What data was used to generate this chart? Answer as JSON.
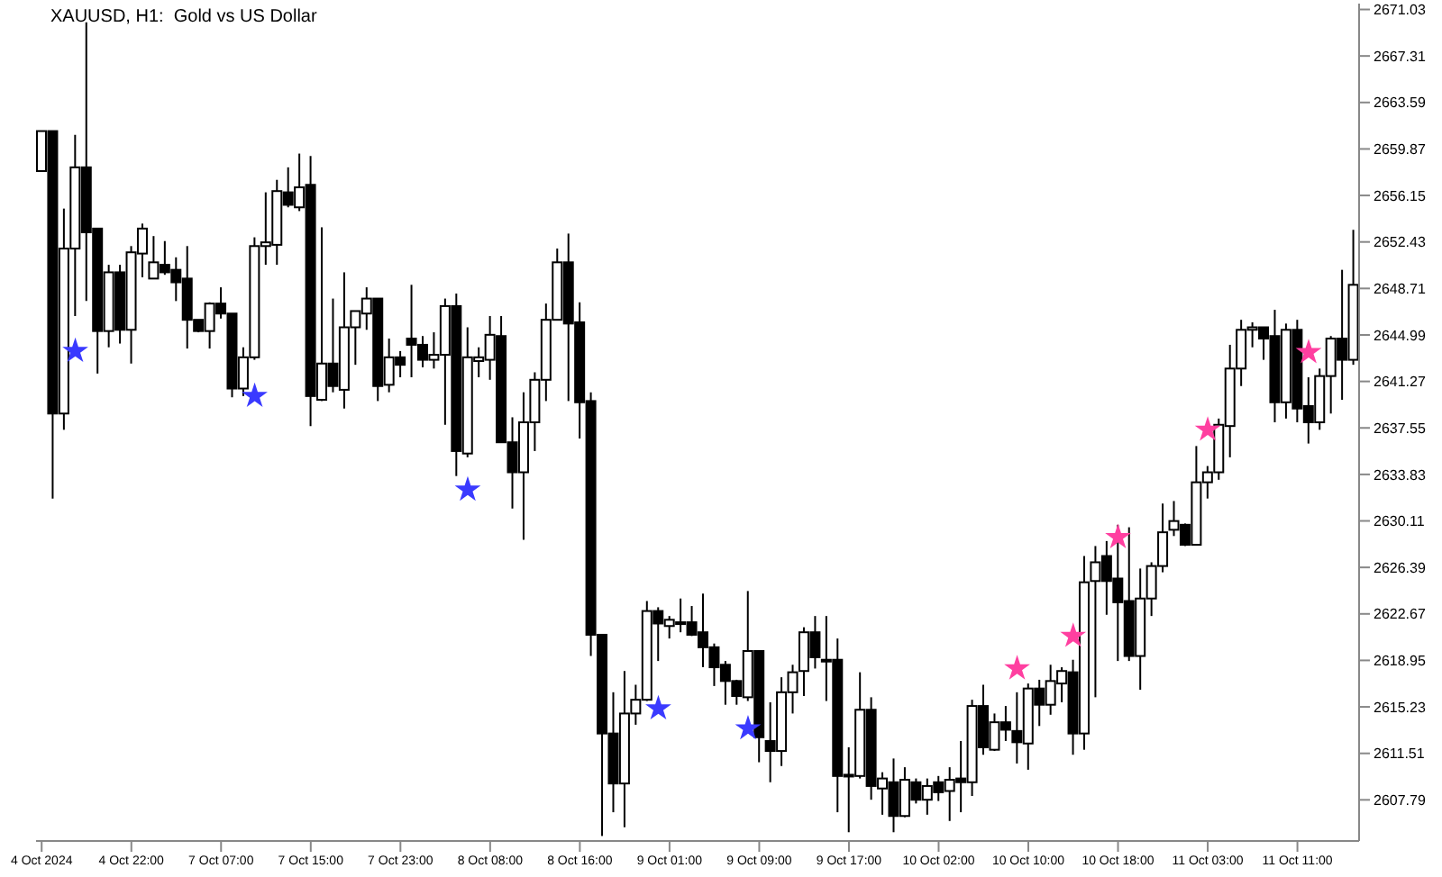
{
  "chart_data": {
    "type": "candlestick",
    "title": "XAUUSD, H1:  Gold vs US Dollar",
    "categories": [
      "4 Oct 2024",
      null,
      null,
      null,
      null,
      null,
      null,
      null,
      "4 Oct 22:00",
      null,
      null,
      null,
      null,
      null,
      null,
      null,
      "7 Oct 07:00",
      null,
      null,
      null,
      null,
      null,
      null,
      null,
      "7 Oct 15:00",
      null,
      null,
      null,
      null,
      null,
      null,
      null,
      "7 Oct 23:00",
      null,
      null,
      null,
      null,
      null,
      null,
      null,
      "8 Oct 08:00",
      null,
      null,
      null,
      null,
      null,
      null,
      null,
      "8 Oct 16:00",
      null,
      null,
      null,
      null,
      null,
      null,
      null,
      "9 Oct 01:00",
      null,
      null,
      null,
      null,
      null,
      null,
      null,
      "9 Oct 09:00",
      null,
      null,
      null,
      null,
      null,
      null,
      null,
      "9 Oct 17:00",
      null,
      null,
      null,
      null,
      null,
      null,
      null,
      "10 Oct 02:00",
      null,
      null,
      null,
      null,
      null,
      null,
      null,
      "10 Oct 10:00",
      null,
      null,
      null,
      null,
      null,
      null,
      null,
      "10 Oct 18:00",
      null,
      null,
      null,
      null,
      null,
      null,
      null,
      "11 Oct 03:00",
      null,
      null,
      null,
      null,
      null,
      null,
      null,
      "11 Oct 11:00",
      null,
      null,
      null,
      null,
      null
    ],
    "ohlc": [
      [
        2658.1,
        2661.3,
        2658.1,
        2661.3
      ],
      [
        2661.3,
        2661.3,
        2631.9,
        2638.7
      ],
      [
        2638.7,
        2655.1,
        2637.4,
        2651.9
      ],
      [
        2651.9,
        2661.0,
        2646.5,
        2658.4
      ],
      [
        2658.4,
        2670.0,
        2647.7,
        2653.2
      ],
      [
        2653.5,
        2653.5,
        2641.9,
        2645.3
      ],
      [
        2645.3,
        2650.6,
        2644.0,
        2650.0
      ],
      [
        2650.0,
        2650.6,
        2644.3,
        2645.4
      ],
      [
        2645.4,
        2652.1,
        2642.7,
        2651.6
      ],
      [
        2651.5,
        2653.9,
        2649.6,
        2653.5
      ],
      [
        2649.5,
        2652.9,
        2649.5,
        2650.8
      ],
      [
        2650.6,
        2652.5,
        2649.8,
        2650.0
      ],
      [
        2650.2,
        2651.2,
        2647.7,
        2649.2
      ],
      [
        2649.5,
        2652.1,
        2643.9,
        2646.2
      ],
      [
        2646.2,
        2646.2,
        2645.2,
        2645.3
      ],
      [
        2645.3,
        2647.6,
        2643.9,
        2647.5
      ],
      [
        2647.5,
        2648.8,
        2646.3,
        2646.7
      ],
      [
        2646.7,
        2646.7,
        2640.0,
        2640.7
      ],
      [
        2640.7,
        2644.0,
        2640.1,
        2643.2
      ],
      [
        2643.2,
        2652.8,
        2643.0,
        2652.1
      ],
      [
        2652.1,
        2656.4,
        2650.6,
        2652.4
      ],
      [
        2652.2,
        2657.4,
        2650.6,
        2656.5
      ],
      [
        2656.4,
        2658.4,
        2655.2,
        2655.4
      ],
      [
        2655.2,
        2659.5,
        2654.9,
        2656.8
      ],
      [
        2657.0,
        2659.3,
        2637.7,
        2640.1
      ],
      [
        2639.8,
        2653.6,
        2639.7,
        2642.7
      ],
      [
        2642.7,
        2647.9,
        2640.4,
        2640.9
      ],
      [
        2640.6,
        2650.0,
        2639.1,
        2645.6
      ],
      [
        2645.6,
        2646.9,
        2642.6,
        2646.9
      ],
      [
        2646.7,
        2648.8,
        2645.4,
        2647.9
      ],
      [
        2647.9,
        2647.9,
        2639.7,
        2640.9
      ],
      [
        2641.0,
        2644.7,
        2640.4,
        2643.2
      ],
      [
        2643.2,
        2643.7,
        2641.6,
        2642.6
      ],
      [
        2644.7,
        2649.0,
        2641.6,
        2644.2
      ],
      [
        2644.2,
        2644.9,
        2642.4,
        2643.0
      ],
      [
        2643.0,
        2645.2,
        2642.3,
        2643.4
      ],
      [
        2643.4,
        2647.9,
        2637.8,
        2647.3
      ],
      [
        2647.3,
        2648.3,
        2633.7,
        2635.7
      ],
      [
        2635.5,
        2645.6,
        2635.2,
        2643.2
      ],
      [
        2642.9,
        2644.0,
        2641.6,
        2643.2
      ],
      [
        2643.0,
        2646.5,
        2641.4,
        2645.0
      ],
      [
        2644.9,
        2646.5,
        2636.4,
        2636.4
      ],
      [
        2636.4,
        2638.4,
        2631.1,
        2634.0
      ],
      [
        2634.0,
        2640.4,
        2628.6,
        2638.0
      ],
      [
        2638.0,
        2642.0,
        2635.7,
        2641.4
      ],
      [
        2641.4,
        2647.5,
        2639.7,
        2646.2
      ],
      [
        2646.2,
        2651.9,
        2646.2,
        2650.8
      ],
      [
        2650.8,
        2653.1,
        2639.7,
        2645.9
      ],
      [
        2646.0,
        2647.6,
        2636.7,
        2639.6
      ],
      [
        2639.7,
        2640.4,
        2619.3,
        2621.0
      ],
      [
        2621.0,
        2621.0,
        2604.9,
        2613.1
      ],
      [
        2613.1,
        2616.4,
        2606.8,
        2609.1
      ],
      [
        2609.1,
        2618.1,
        2605.6,
        2614.7
      ],
      [
        2614.7,
        2617.0,
        2613.8,
        2615.8
      ],
      [
        2615.8,
        2623.7,
        2615.7,
        2622.9
      ],
      [
        2622.9,
        2623.2,
        2618.9,
        2621.9
      ],
      [
        2621.7,
        2622.5,
        2620.7,
        2622.2
      ],
      [
        2622.0,
        2623.9,
        2621.2,
        2622.0
      ],
      [
        2622.0,
        2623.3,
        2620.9,
        2621.0
      ],
      [
        2621.2,
        2624.3,
        2618.4,
        2620.0
      ],
      [
        2620.0,
        2620.3,
        2616.9,
        2618.4
      ],
      [
        2618.6,
        2618.9,
        2615.4,
        2617.3
      ],
      [
        2617.3,
        2617.4,
        2615.4,
        2616.1
      ],
      [
        2616.0,
        2624.5,
        2615.7,
        2619.7
      ],
      [
        2619.7,
        2619.7,
        2610.8,
        2612.8
      ],
      [
        2612.5,
        2615.6,
        2609.2,
        2611.7
      ],
      [
        2611.7,
        2617.6,
        2610.5,
        2616.4
      ],
      [
        2616.4,
        2618.6,
        2614.7,
        2618.0
      ],
      [
        2618.1,
        2621.6,
        2616.1,
        2621.2
      ],
      [
        2621.2,
        2622.5,
        2618.3,
        2619.2
      ],
      [
        2619.0,
        2622.5,
        2615.7,
        2619.0
      ],
      [
        2619.0,
        2620.7,
        2606.8,
        2609.7
      ],
      [
        2609.8,
        2612.0,
        2605.2,
        2609.8
      ],
      [
        2609.7,
        2618.0,
        2609.5,
        2615.0
      ],
      [
        2615.0,
        2616.0,
        2607.8,
        2608.9
      ],
      [
        2608.7,
        2610.0,
        2606.6,
        2609.5
      ],
      [
        2609.2,
        2611.1,
        2605.2,
        2606.5
      ],
      [
        2606.5,
        2610.4,
        2606.4,
        2609.4
      ],
      [
        2609.2,
        2609.5,
        2607.5,
        2607.8
      ],
      [
        2607.8,
        2609.5,
        2606.6,
        2608.9
      ],
      [
        2609.2,
        2609.7,
        2607.7,
        2608.4
      ],
      [
        2608.5,
        2610.4,
        2606.1,
        2609.4
      ],
      [
        2609.5,
        2612.5,
        2606.8,
        2609.2
      ],
      [
        2609.2,
        2615.8,
        2608.1,
        2615.3
      ],
      [
        2615.3,
        2617.0,
        2611.4,
        2612.0
      ],
      [
        2611.8,
        2614.7,
        2611.7,
        2614.0
      ],
      [
        2614.0,
        2615.3,
        2612.5,
        2613.4
      ],
      [
        2613.3,
        2616.4,
        2610.7,
        2612.4
      ],
      [
        2612.3,
        2617.1,
        2610.2,
        2616.7
      ],
      [
        2616.7,
        2617.4,
        2613.7,
        2615.4
      ],
      [
        2615.4,
        2618.6,
        2614.6,
        2617.3
      ],
      [
        2617.1,
        2618.4,
        2615.6,
        2618.1
      ],
      [
        2618.0,
        2619.0,
        2611.4,
        2613.1
      ],
      [
        2613.1,
        2627.3,
        2611.8,
        2625.2
      ],
      [
        2625.3,
        2628.1,
        2616.0,
        2626.8
      ],
      [
        2627.3,
        2628.5,
        2622.6,
        2625.3
      ],
      [
        2625.5,
        2629.8,
        2618.9,
        2623.6
      ],
      [
        2623.7,
        2629.6,
        2618.9,
        2619.3
      ],
      [
        2619.3,
        2626.3,
        2616.6,
        2623.9
      ],
      [
        2623.9,
        2626.8,
        2622.5,
        2626.5
      ],
      [
        2626.5,
        2631.5,
        2626.0,
        2629.2
      ],
      [
        2629.4,
        2631.7,
        2628.9,
        2630.1
      ],
      [
        2629.8,
        2629.9,
        2628.1,
        2628.2
      ],
      [
        2628.2,
        2636.1,
        2628.2,
        2633.2
      ],
      [
        2633.2,
        2634.5,
        2631.9,
        2634.0
      ],
      [
        2634.0,
        2638.3,
        2633.4,
        2637.8
      ],
      [
        2637.7,
        2644.2,
        2635.2,
        2642.3
      ],
      [
        2642.3,
        2646.2,
        2640.9,
        2645.4
      ],
      [
        2645.4,
        2646.0,
        2644.0,
        2645.6
      ],
      [
        2645.6,
        2645.6,
        2643.0,
        2644.7
      ],
      [
        2644.9,
        2647.0,
        2638.0,
        2639.6
      ],
      [
        2639.6,
        2645.9,
        2638.3,
        2645.4
      ],
      [
        2645.4,
        2646.2,
        2638.0,
        2639.1
      ],
      [
        2639.3,
        2641.6,
        2636.3,
        2638.0
      ],
      [
        2638.0,
        2642.3,
        2637.4,
        2641.7
      ],
      [
        2641.7,
        2644.9,
        2638.7,
        2644.7
      ],
      [
        2644.7,
        2650.2,
        2639.8,
        2643.0
      ],
      [
        2643.0,
        2653.4,
        2642.6,
        2649.0
      ]
    ],
    "series": [
      {
        "type": "scatter",
        "color": "#3a3aff",
        "values": [
          null,
          null,
          null,
          2643.7,
          null,
          null,
          null,
          null,
          null,
          null,
          null,
          null,
          null,
          null,
          null,
          null,
          null,
          null,
          null,
          2640.1,
          null,
          null,
          null,
          null,
          null,
          null,
          null,
          null,
          null,
          null,
          null,
          null,
          null,
          null,
          null,
          null,
          null,
          null,
          2632.6,
          null,
          null,
          null,
          null,
          null,
          null,
          null,
          null,
          null,
          null,
          null,
          null,
          null,
          null,
          null,
          null,
          2615.1,
          null,
          null,
          null,
          null,
          null,
          null,
          null,
          2613.5,
          null,
          null,
          null,
          null,
          null,
          null,
          null,
          null,
          null,
          null,
          null,
          null,
          null,
          null,
          null,
          null,
          null,
          null,
          null,
          null,
          null,
          null,
          null,
          null,
          null,
          null,
          null,
          null,
          null,
          null,
          null,
          null,
          null,
          null,
          null,
          null,
          null,
          null,
          null,
          null,
          null,
          null,
          null,
          null,
          null,
          null,
          null,
          null,
          null,
          null,
          null,
          null,
          null,
          null
        ]
      },
      {
        "type": "scatter",
        "color": "#ff3fa0",
        "values": [
          null,
          null,
          null,
          null,
          null,
          null,
          null,
          null,
          null,
          null,
          null,
          null,
          null,
          null,
          null,
          null,
          null,
          null,
          null,
          null,
          null,
          null,
          null,
          null,
          null,
          null,
          null,
          null,
          null,
          null,
          null,
          null,
          null,
          null,
          null,
          null,
          null,
          null,
          null,
          null,
          null,
          null,
          null,
          null,
          null,
          null,
          null,
          null,
          null,
          null,
          null,
          null,
          null,
          null,
          null,
          null,
          null,
          null,
          null,
          null,
          null,
          null,
          null,
          null,
          null,
          null,
          null,
          null,
          null,
          null,
          null,
          null,
          null,
          null,
          null,
          null,
          null,
          null,
          null,
          null,
          null,
          null,
          null,
          null,
          null,
          null,
          null,
          2618.3,
          null,
          null,
          null,
          null,
          2620.9,
          null,
          null,
          null,
          2628.8,
          null,
          null,
          null,
          null,
          null,
          null,
          null,
          2637.4,
          null,
          null,
          null,
          null,
          null,
          null,
          null,
          null,
          2643.6,
          null,
          null,
          null,
          null
        ]
      }
    ],
    "ylim": [
      2604.5,
      2671.5
    ],
    "yticks": [
      2671.03,
      2667.31,
      2663.59,
      2659.87,
      2656.15,
      2652.43,
      2648.71,
      2644.99,
      2641.27,
      2637.55,
      2633.83,
      2630.11,
      2626.39,
      2622.67,
      2618.95,
      2615.23,
      2611.51,
      2607.79
    ],
    "marker": "star"
  }
}
